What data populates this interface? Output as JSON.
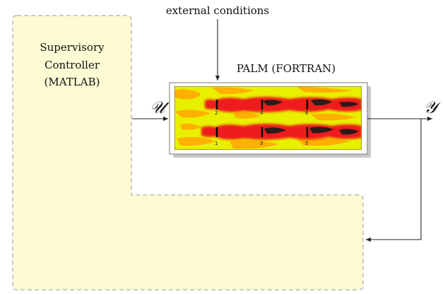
{
  "labels": {
    "external": "external conditions",
    "palm": "PALM (FORTRAN)",
    "controller_line1": "Supervisory",
    "controller_line2": "Controller",
    "controller_line3": "(MATLAB)",
    "input_signal": "𝒰",
    "output_signal": "𝒴"
  },
  "turbines": {
    "upper": [
      "2",
      "4",
      "6"
    ],
    "lower": [
      "1",
      "3",
      "5"
    ]
  },
  "colors": {
    "controller_fill": "#fdfbd4",
    "controller_border": "#999999",
    "field_background": "#e8f000",
    "field_orange": "#ffb000",
    "field_red": "#ee1c1c",
    "field_dark": "#1a1a1a",
    "frame_shadow": "#c8c8c8"
  }
}
